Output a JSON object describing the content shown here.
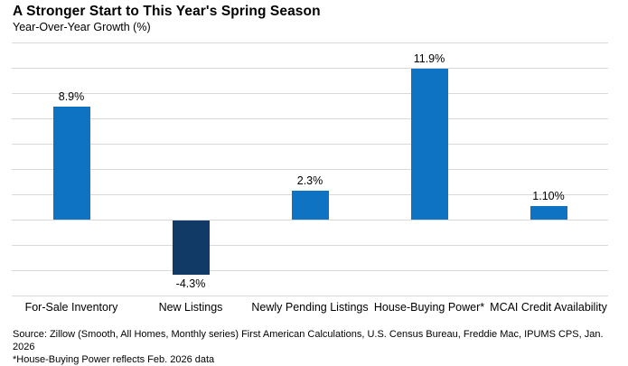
{
  "header": {
    "title": "A Stronger Start to This Year's Spring Season",
    "subtitle": "Year-Over-Year Growth (%)"
  },
  "chart_data": {
    "type": "bar",
    "title": "A Stronger Start to This Year's Spring Season",
    "ylabel": "Year-Over-Year Growth (%)",
    "xlabel": "",
    "categories": [
      "For-Sale Inventory",
      "New Listings",
      "Newly Pending Listings",
      "House-Buying Power*",
      "MCAI Credit Availability"
    ],
    "values": [
      8.9,
      -4.3,
      2.3,
      11.9,
      1.1
    ],
    "value_labels": [
      "8.9%",
      "-4.3%",
      "2.3%",
      "11.9%",
      "1.10%"
    ],
    "ylim": [
      -6,
      14
    ],
    "gridline_step": 2,
    "grid": "horizontal-only",
    "legend_position": "none",
    "axis_tick_labels_shown": false,
    "positive_bar_color": "#0d73c2",
    "negative_bar_color": "#113a67",
    "gridline_color": "#d9d9d9"
  },
  "footer": {
    "source_line1": "Source: Zillow (Smooth, All Homes, Monthly series) First American Calculations, U.S. Census Bureau, Freddie Mac, IPUMS CPS, Jan. 2026",
    "source_line2": "*House-Buying Power reflects Feb. 2026 data"
  }
}
